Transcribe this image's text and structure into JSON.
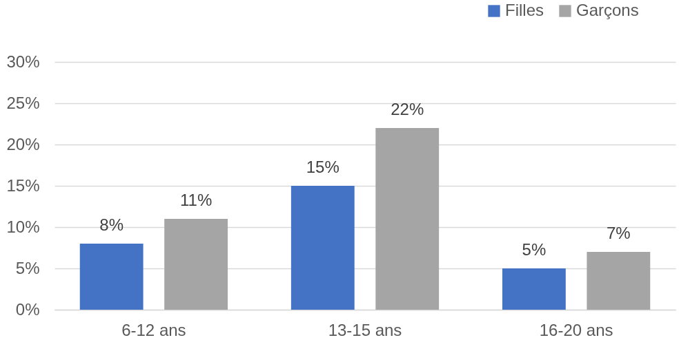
{
  "chart_data": {
    "type": "bar",
    "categories": [
      "6-12 ans",
      "13-15 ans",
      "16-20 ans"
    ],
    "series": [
      {
        "name": "Filles",
        "color": "#4472c4",
        "values": [
          8,
          15,
          5
        ],
        "value_labels": [
          "8%",
          "15%",
          "5%"
        ]
      },
      {
        "name": "Garçons",
        "color": "#a5a5a5",
        "values": [
          11,
          22,
          7
        ],
        "value_labels": [
          "11%",
          "22%",
          "7%"
        ]
      }
    ],
    "ylim": [
      0,
      30
    ],
    "yticks": [
      {
        "value": 0,
        "label": "0%"
      },
      {
        "value": 5,
        "label": "5%"
      },
      {
        "value": 10,
        "label": "10%"
      },
      {
        "value": 15,
        "label": "15%"
      },
      {
        "value": 20,
        "label": "20%"
      },
      {
        "value": 25,
        "label": "25%"
      },
      {
        "value": 30,
        "label": "30%"
      }
    ],
    "grid": "y",
    "legend": "top right"
  }
}
